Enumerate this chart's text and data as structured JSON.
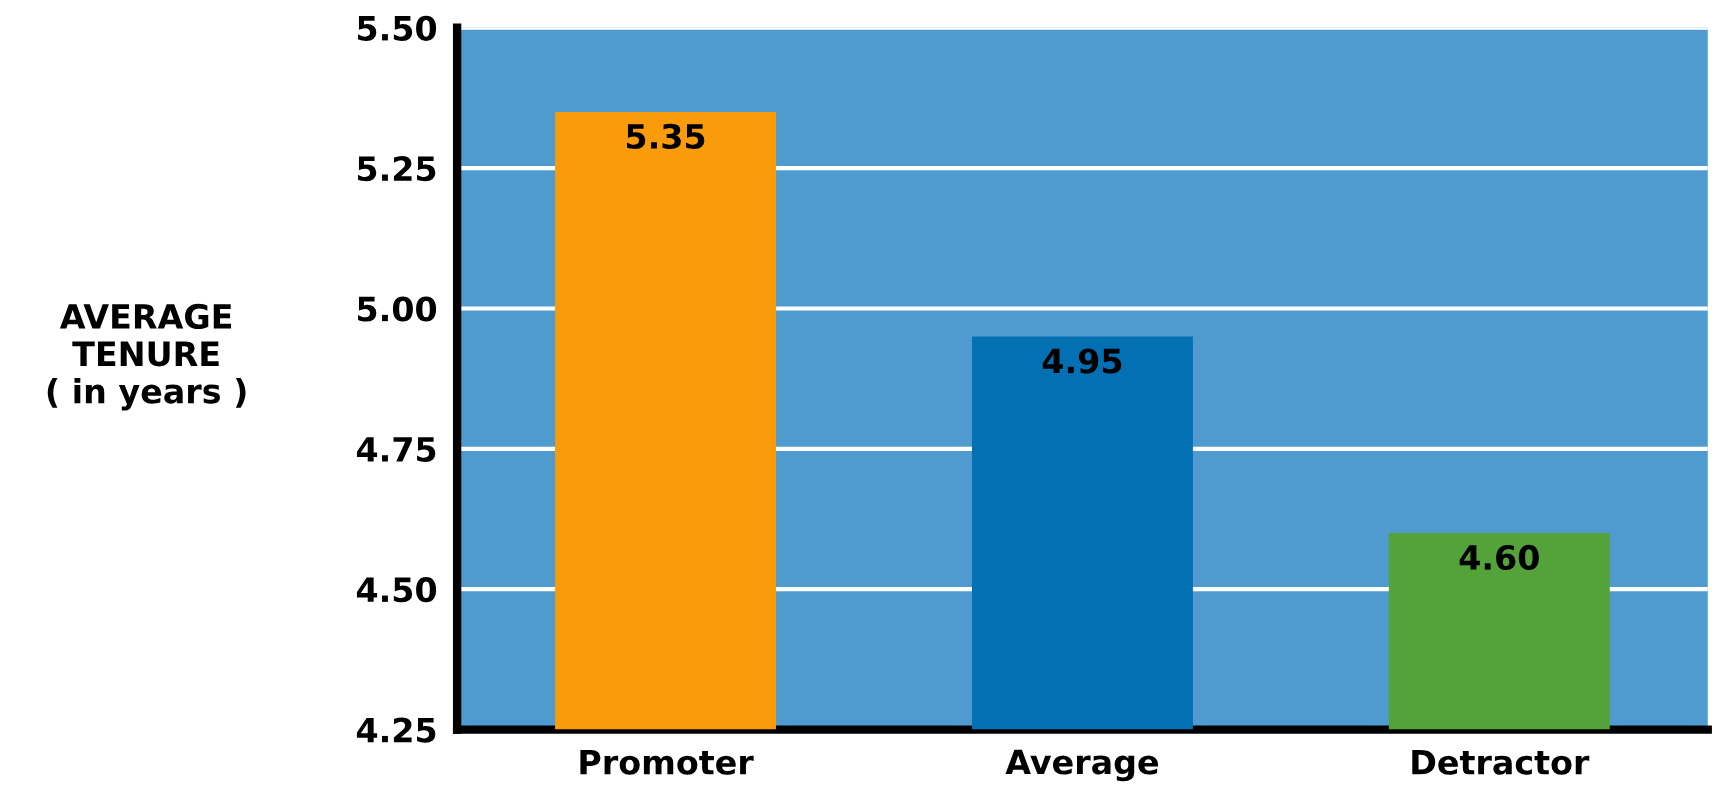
{
  "chart_data": {
    "type": "bar",
    "ylabel": "AVERAGE\nTENURE\n( in years )",
    "categories": [
      "Promoter",
      "Average",
      "Detractor"
    ],
    "values": [
      5.35,
      4.95,
      4.6
    ],
    "colors": [
      "#f99b0a",
      "#0270b3",
      "#54a33a"
    ],
    "value_labels": [
      "5.35",
      "4.95",
      "4.60"
    ],
    "ylim": [
      4.25,
      5.5
    ],
    "yticks": [
      {
        "value": 4.25,
        "label": "4.25"
      },
      {
        "value": 4.5,
        "label": "4.50"
      },
      {
        "value": 4.75,
        "label": "4.75"
      },
      {
        "value": 5.0,
        "label": "5.00"
      },
      {
        "value": 5.25,
        "label": "5.25"
      },
      {
        "value": 5.5,
        "label": "5.50"
      }
    ],
    "grid": "y"
  }
}
